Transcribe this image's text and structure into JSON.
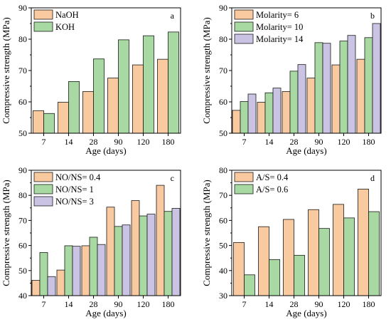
{
  "colors": {
    "orange": "#f9c9a0",
    "green": "#a8d9a2",
    "purple": "#cbc3e3"
  },
  "chart_data": [
    {
      "type": "bar",
      "panel": "a",
      "categories": [
        "7",
        "14",
        "28",
        "90",
        "120",
        "180"
      ],
      "xlabel": "Age (days)",
      "ylabel": "Compressive strength (MPa)",
      "ylim": [
        50,
        90
      ],
      "yticks": [
        50,
        60,
        70,
        80,
        90
      ],
      "legend_position": "top-left",
      "series": [
        {
          "name": "NaOH",
          "color": "orange",
          "values": [
            57.2,
            59.9,
            63.3,
            67.6,
            71.8,
            73.6
          ]
        },
        {
          "name": "KOH",
          "color": "green",
          "values": [
            56.3,
            66.5,
            73.7,
            79.8,
            81.1,
            82.3
          ]
        }
      ]
    },
    {
      "type": "bar",
      "panel": "b",
      "categories": [
        "7",
        "14",
        "28",
        "90",
        "120",
        "180"
      ],
      "xlabel": "Age (days)",
      "ylabel": "Compressive strength (MPa)",
      "ylim": [
        50,
        90
      ],
      "yticks": [
        50,
        60,
        70,
        80,
        90
      ],
      "legend_position": "top-left",
      "series": [
        {
          "name": "Molarity= 6",
          "color": "orange",
          "values": [
            57.3,
            59.9,
            63.3,
            67.6,
            71.8,
            73.6
          ]
        },
        {
          "name": "Molarity= 10",
          "color": "green",
          "values": [
            60.1,
            62.9,
            69.8,
            78.9,
            79.4,
            80.5
          ]
        },
        {
          "name": "Molarity= 14",
          "color": "purple",
          "values": [
            62.5,
            64.4,
            71.9,
            78.7,
            81.2,
            85.0
          ]
        }
      ]
    },
    {
      "type": "bar",
      "panel": "c",
      "categories": [
        "7",
        "14",
        "28",
        "90",
        "120",
        "180"
      ],
      "xlabel": "Age (days)",
      "ylabel": "Compressive strength (MPa)",
      "ylim": [
        40,
        90
      ],
      "yticks": [
        40,
        50,
        60,
        70,
        80,
        90
      ],
      "legend_position": "top-left",
      "series": [
        {
          "name": "NO/NS= 0.4",
          "color": "orange",
          "values": [
            46.1,
            50.2,
            59.9,
            75.3,
            77.9,
            84.0
          ]
        },
        {
          "name": "NO/NS= 1",
          "color": "green",
          "values": [
            57.2,
            59.9,
            63.3,
            67.6,
            71.8,
            73.6
          ]
        },
        {
          "name": "NO/NS= 3",
          "color": "purple",
          "values": [
            47.6,
            59.7,
            60.4,
            68.2,
            72.5,
            74.8
          ]
        }
      ]
    },
    {
      "type": "bar",
      "panel": "d",
      "categories": [
        "7",
        "14",
        "28",
        "90",
        "120",
        "180"
      ],
      "xlabel": "Age (days)",
      "ylabel": "Compressive strength (MPa)",
      "ylim": [
        30,
        80
      ],
      "yticks": [
        30,
        40,
        50,
        60,
        70,
        80
      ],
      "legend_position": "top-left",
      "series": [
        {
          "name": "A/S= 0.4",
          "color": "orange",
          "values": [
            51.2,
            57.5,
            60.4,
            64.3,
            66.4,
            72.5
          ]
        },
        {
          "name": "A/S= 0.6",
          "color": "green",
          "values": [
            38.3,
            44.4,
            46.1,
            56.8,
            61.0,
            63.5
          ]
        }
      ]
    }
  ]
}
